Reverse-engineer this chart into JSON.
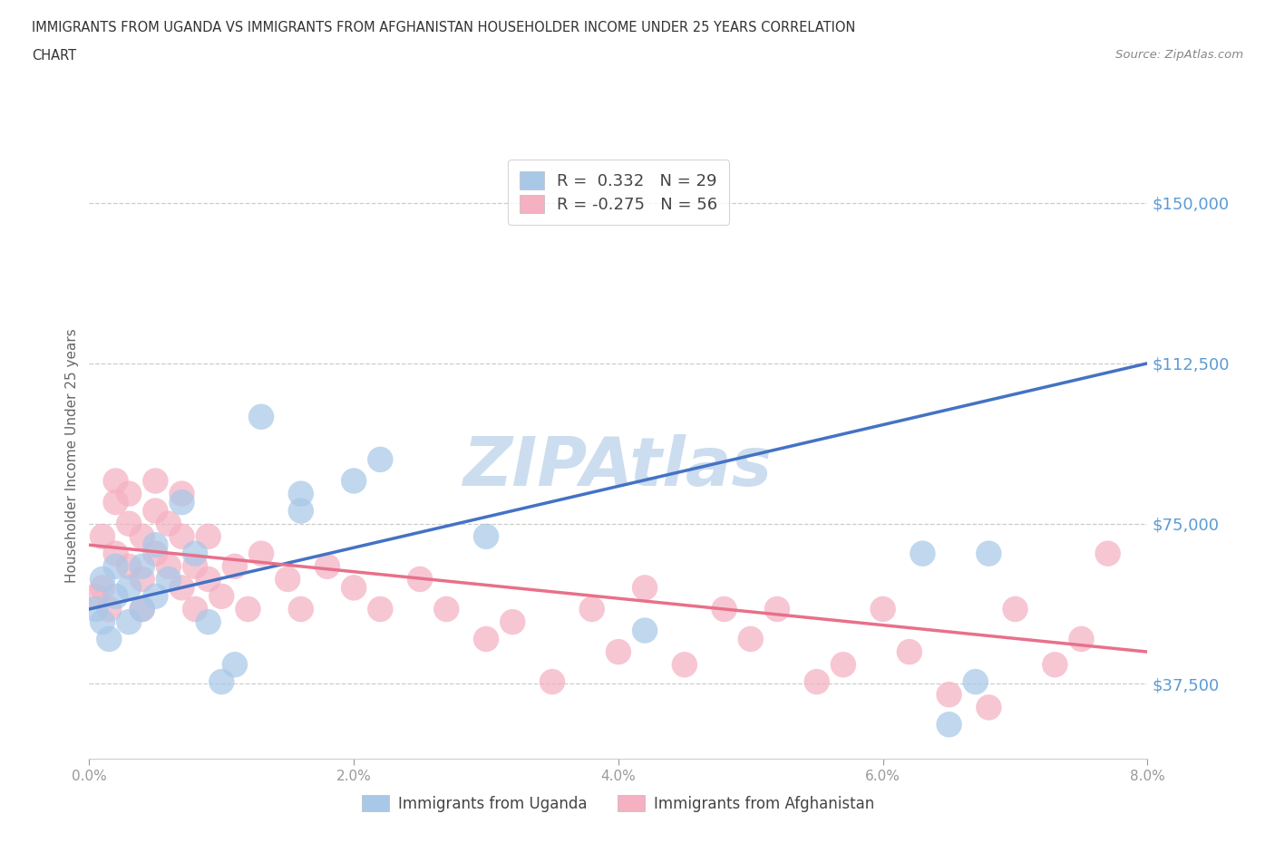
{
  "title_line1": "IMMIGRANTS FROM UGANDA VS IMMIGRANTS FROM AFGHANISTAN HOUSEHOLDER INCOME UNDER 25 YEARS CORRELATION",
  "title_line2": "CHART",
  "source_text": "Source: ZipAtlas.com",
  "ylabel": "Householder Income Under 25 years",
  "legend_uganda": "Immigrants from Uganda",
  "legend_afghanistan": "Immigrants from Afghanistan",
  "r_uganda": 0.332,
  "n_uganda": 29,
  "r_afghanistan": -0.275,
  "n_afghanistan": 56,
  "xlim": [
    0.0,
    0.08
  ],
  "ylim": [
    20000,
    162000
  ],
  "yticks": [
    37500,
    75000,
    112500,
    150000
  ],
  "xtick_values": [
    0.0,
    0.02,
    0.04,
    0.06,
    0.08
  ],
  "color_uganda": "#a8c8e8",
  "color_afghanistan": "#f5b0c2",
  "line_color_uganda": "#4472c4",
  "line_color_afghanistan": "#e8708a",
  "tick_color": "#5b9bd5",
  "background_color": "#ffffff",
  "uganda_x": [
    0.0005,
    0.001,
    0.001,
    0.0015,
    0.002,
    0.002,
    0.003,
    0.003,
    0.004,
    0.004,
    0.005,
    0.005,
    0.006,
    0.007,
    0.008,
    0.009,
    0.01,
    0.011,
    0.013,
    0.016,
    0.016,
    0.02,
    0.022,
    0.03,
    0.042,
    0.063,
    0.065,
    0.067,
    0.068
  ],
  "uganda_y": [
    55000,
    52000,
    62000,
    48000,
    58000,
    65000,
    52000,
    60000,
    55000,
    65000,
    58000,
    70000,
    62000,
    80000,
    68000,
    52000,
    38000,
    42000,
    100000,
    78000,
    82000,
    85000,
    90000,
    72000,
    50000,
    68000,
    28000,
    38000,
    68000
  ],
  "afghanistan_x": [
    0.0005,
    0.001,
    0.001,
    0.0015,
    0.002,
    0.002,
    0.002,
    0.003,
    0.003,
    0.003,
    0.004,
    0.004,
    0.004,
    0.005,
    0.005,
    0.005,
    0.006,
    0.006,
    0.007,
    0.007,
    0.007,
    0.008,
    0.008,
    0.009,
    0.009,
    0.01,
    0.011,
    0.012,
    0.013,
    0.015,
    0.016,
    0.018,
    0.02,
    0.022,
    0.025,
    0.027,
    0.03,
    0.032,
    0.035,
    0.038,
    0.04,
    0.042,
    0.045,
    0.048,
    0.05,
    0.052,
    0.055,
    0.057,
    0.06,
    0.062,
    0.065,
    0.068,
    0.07,
    0.073,
    0.075,
    0.077
  ],
  "afghanistan_y": [
    58000,
    72000,
    60000,
    55000,
    80000,
    68000,
    85000,
    75000,
    65000,
    82000,
    62000,
    72000,
    55000,
    68000,
    78000,
    85000,
    65000,
    75000,
    72000,
    60000,
    82000,
    65000,
    55000,
    72000,
    62000,
    58000,
    65000,
    55000,
    68000,
    62000,
    55000,
    65000,
    60000,
    55000,
    62000,
    55000,
    48000,
    52000,
    38000,
    55000,
    45000,
    60000,
    42000,
    55000,
    48000,
    55000,
    38000,
    42000,
    55000,
    45000,
    35000,
    32000,
    55000,
    42000,
    48000,
    68000
  ]
}
